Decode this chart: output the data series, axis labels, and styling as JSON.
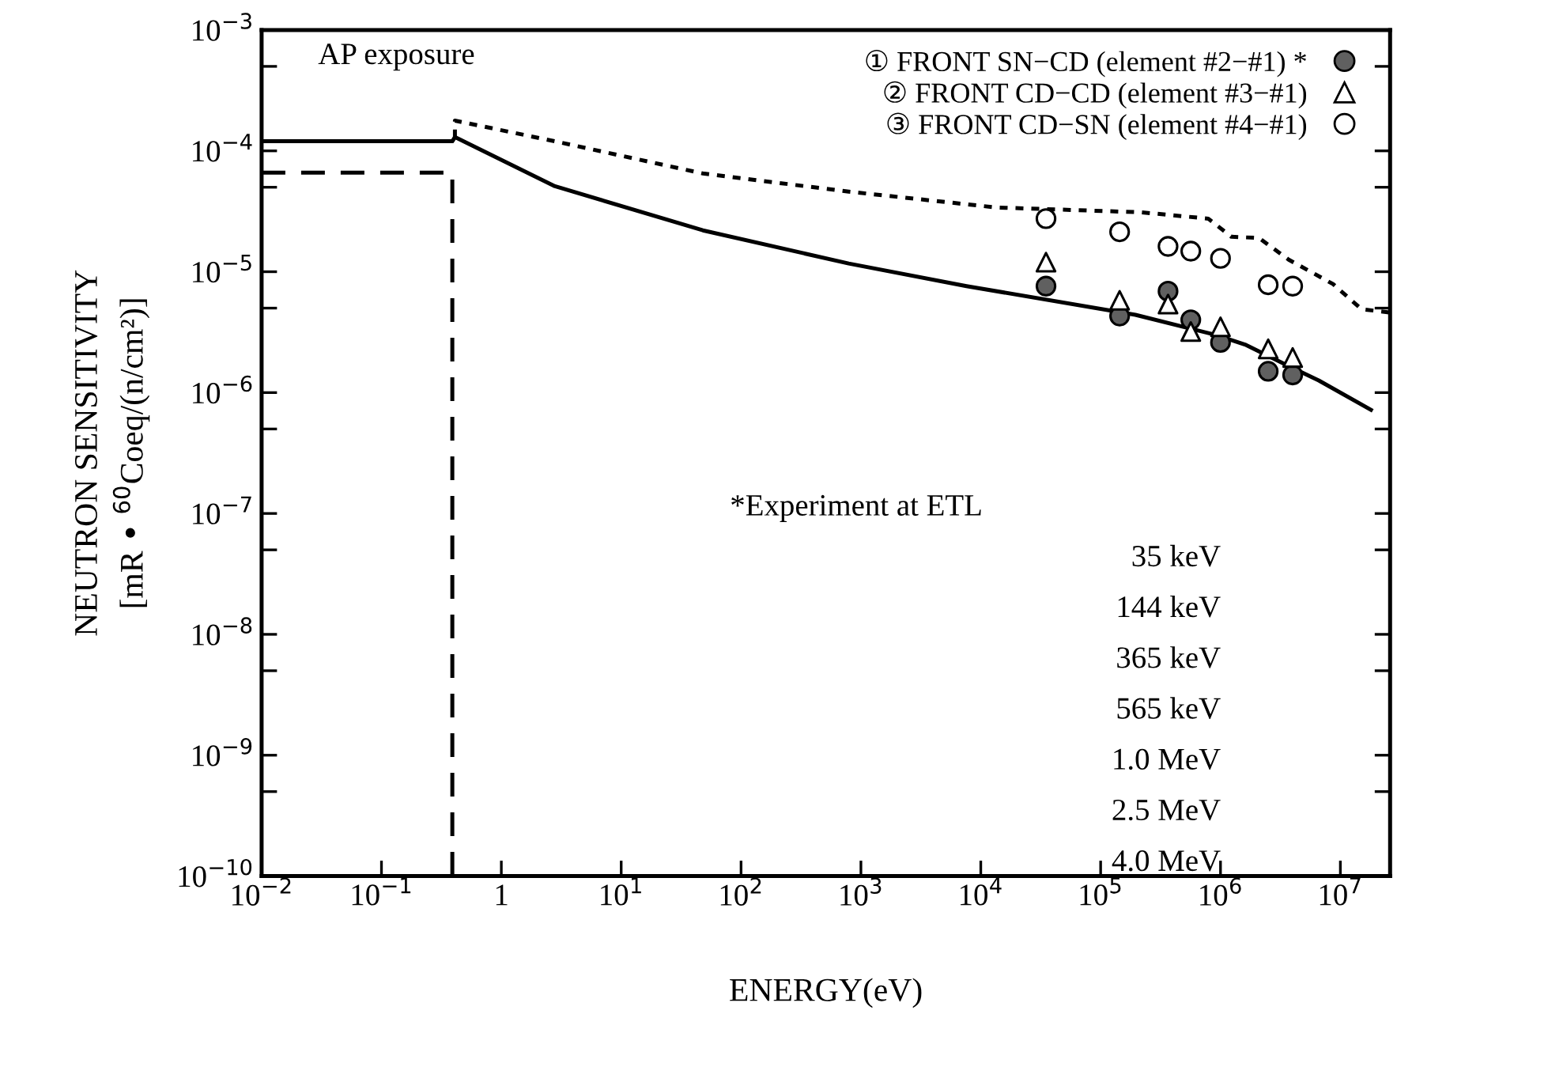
{
  "chart_data": {
    "type": "line",
    "xlabel": "ENERGY(eV)",
    "ylabel": "NEUTRON SENSITIVITY\n[mR • $^{60}$Coeq/(n/cm²)]",
    "annotations": [
      "AP exposure",
      "*Experiment at ETL",
      "35 keV",
      "144 keV",
      "365 keV",
      "565 keV",
      "1.0 MeV",
      "2.5 MeV",
      "4.0 MeV"
    ],
    "log": "xy",
    "xlim": [
      0.01,
      26000000.0
    ],
    "ylim": [
      1e-10,
      0.001
    ],
    "xticks": [
      {
        "value": 0.01,
        "label": "10$^{−2}$"
      },
      {
        "value": 0.1,
        "label": "10$^{−1}$"
      },
      {
        "value": 1,
        "label": "1"
      },
      {
        "value": 10,
        "label": "10$^{1}$"
      },
      {
        "value": 100,
        "label": "10$^{2}$"
      },
      {
        "value": 1000,
        "label": "10$^{3}$"
      },
      {
        "value": 10000,
        "label": "10$^{4}$"
      },
      {
        "value": 100000,
        "label": "10$^{5}$"
      },
      {
        "value": 1000000,
        "label": "10$^{6}$"
      },
      {
        "value": 10000000,
        "label": "10$^{7}$"
      }
    ],
    "yticks": [
      {
        "value": 1e-10,
        "label": "10$^{−10}$"
      },
      {
        "value": 5e-10,
        "label": null
      },
      {
        "value": 1e-09,
        "label": "10$^{−9}$"
      },
      {
        "value": 5e-09,
        "label": null
      },
      {
        "value": 1e-08,
        "label": "10$^{−8}$"
      },
      {
        "value": 5e-08,
        "label": null
      },
      {
        "value": 1e-07,
        "label": "10$^{−7}$"
      },
      {
        "value": 5e-07,
        "label": null
      },
      {
        "value": 1e-06,
        "label": "10$^{−6}$"
      },
      {
        "value": 5e-06,
        "label": null
      },
      {
        "value": 1e-05,
        "label": "10$^{−5}$"
      },
      {
        "value": 5e-05,
        "label": null
      },
      {
        "value": 0.0001,
        "label": "10$^{−4}$"
      },
      {
        "value": 0.0005,
        "label": null
      },
      {
        "value": 0.001,
        "label": "10$^{−3}$"
      }
    ],
    "grid": false,
    "legend": "top right",
    "series": [
      {
        "line_style": "solid",
        "color": "#000000",
        "x": [
          0.01,
          0.39,
          0.41,
          2.8,
          48,
          790,
          7600,
          195000,
          910000,
          1600000,
          3700000,
          6600000,
          18000000
        ],
        "values": [
          0.00012,
          0.00012,
          0.00013,
          5.1e-05,
          2.2e-05,
          1.17e-05,
          7.6e-06,
          4.4e-06,
          3e-06,
          2.5e-06,
          1.66e-06,
          1.26e-06,
          7.2e-07
        ]
      },
      {
        "line_style": "dashed",
        "color": "#000000",
        "x": [
          0.01,
          0.39,
          0.39
        ],
        "values": [
          6.6e-05,
          6.6e-05,
          1e-10
        ]
      },
      {
        "line_style": "dotted",
        "color": "#000000",
        "x": [
          0.41,
          0.41,
          2.8,
          48,
          790,
          13500,
          220000,
          790000,
          1230000,
          2100000,
          3700000,
          8700000,
          15000000,
          26000000
        ],
        "values": [
          0.000129,
          0.000178,
          0.00012,
          6.5e-05,
          4.6e-05,
          3.4e-05,
          3.1e-05,
          2.75e-05,
          1.95e-05,
          1.9e-05,
          1.26e-05,
          7.9e-06,
          4.9e-06,
          4.6e-06
        ]
      },
      {
        "type": "scatter",
        "name": "① FRONT SN−CD (element #2−#1) *",
        "marker": "circle",
        "color": "#606060",
        "x": [
          35000,
          144000,
          365000,
          565000,
          1000000,
          2500000,
          4000000
        ],
        "values": [
          7.6e-06,
          4.3e-06,
          6.9e-06,
          4e-06,
          2.6e-06,
          1.5e-06,
          1.4e-06
        ]
      },
      {
        "type": "scatter",
        "name": "② FRONT CD−CD (element #3−#1)",
        "marker": "triangle",
        "color": "#ffffff",
        "x": [
          35000,
          144000,
          365000,
          565000,
          1000000,
          2500000,
          4000000
        ],
        "values": [
          1.2e-05,
          5.8e-06,
          5.4e-06,
          3.2e-06,
          3.5e-06,
          2.3e-06,
          1.95e-06
        ]
      },
      {
        "type": "scatter",
        "name": "③ FRONT CD−SN (element #4−#1)",
        "marker": "circle",
        "color": "#ffffff",
        "x": [
          35000,
          144000,
          365000,
          565000,
          1000000,
          2500000,
          4000000
        ],
        "values": [
          2.75e-05,
          2.14e-05,
          1.62e-05,
          1.48e-05,
          1.29e-05,
          7.8e-06,
          7.6e-06
        ]
      }
    ]
  }
}
